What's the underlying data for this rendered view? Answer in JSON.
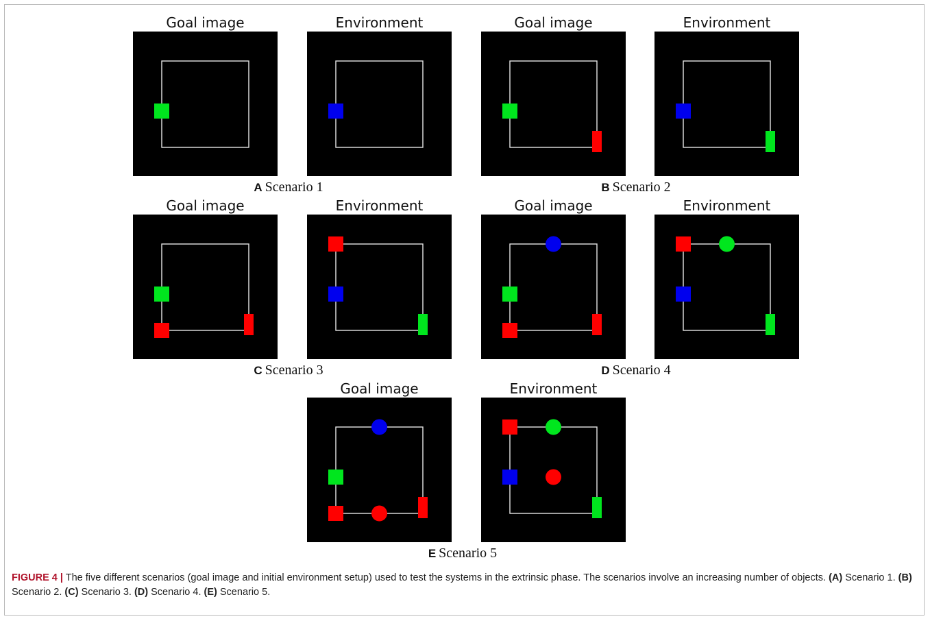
{
  "labels": {
    "goal": "Goal image",
    "env": "Environment"
  },
  "colors": {
    "red": "#ff0000",
    "green": "#00e61e",
    "blue": "#0000ee",
    "boundary": "#e6e6e6",
    "background": "#000000",
    "caption_label": "#b0122a"
  },
  "scenarios": [
    {
      "letter": "A",
      "title": "Scenario 1",
      "goal": [
        {
          "shape": "square",
          "color": "green",
          "at": "left-edge-middle"
        }
      ],
      "env": [
        {
          "shape": "square",
          "color": "blue",
          "at": "left-edge-middle"
        }
      ]
    },
    {
      "letter": "B",
      "title": "Scenario 2",
      "goal": [
        {
          "shape": "square",
          "color": "green",
          "at": "left-edge-middle"
        },
        {
          "shape": "bar",
          "color": "red",
          "at": "bottom-right-corner"
        }
      ],
      "env": [
        {
          "shape": "square",
          "color": "blue",
          "at": "left-edge-middle"
        },
        {
          "shape": "bar",
          "color": "green",
          "at": "bottom-right-corner"
        }
      ]
    },
    {
      "letter": "C",
      "title": "Scenario 3",
      "goal": [
        {
          "shape": "square",
          "color": "green",
          "at": "left-edge-middle"
        },
        {
          "shape": "square",
          "color": "red",
          "at": "bottom-left-corner"
        },
        {
          "shape": "bar",
          "color": "red",
          "at": "bottom-right-corner"
        }
      ],
      "env": [
        {
          "shape": "square",
          "color": "red",
          "at": "top-left-corner"
        },
        {
          "shape": "square",
          "color": "blue",
          "at": "left-edge-middle"
        },
        {
          "shape": "bar",
          "color": "green",
          "at": "bottom-right-corner"
        }
      ]
    },
    {
      "letter": "D",
      "title": "Scenario 4",
      "goal": [
        {
          "shape": "circle",
          "color": "blue",
          "at": "top-edge-middle"
        },
        {
          "shape": "square",
          "color": "green",
          "at": "left-edge-middle"
        },
        {
          "shape": "square",
          "color": "red",
          "at": "bottom-left-corner"
        },
        {
          "shape": "bar",
          "color": "red",
          "at": "bottom-right-corner"
        }
      ],
      "env": [
        {
          "shape": "square",
          "color": "red",
          "at": "top-left-corner"
        },
        {
          "shape": "circle",
          "color": "green",
          "at": "top-edge-middle"
        },
        {
          "shape": "square",
          "color": "blue",
          "at": "left-edge-middle"
        },
        {
          "shape": "bar",
          "color": "green",
          "at": "bottom-right-corner"
        }
      ]
    },
    {
      "letter": "E",
      "title": "Scenario 5",
      "goal": [
        {
          "shape": "circle",
          "color": "blue",
          "at": "top-edge-middle"
        },
        {
          "shape": "square",
          "color": "green",
          "at": "left-edge-middle"
        },
        {
          "shape": "square",
          "color": "red",
          "at": "bottom-left-corner"
        },
        {
          "shape": "circle",
          "color": "red",
          "at": "bottom-edge-middle"
        },
        {
          "shape": "bar",
          "color": "red",
          "at": "bottom-right-corner"
        }
      ],
      "env": [
        {
          "shape": "square",
          "color": "red",
          "at": "top-left-corner"
        },
        {
          "shape": "circle",
          "color": "green",
          "at": "top-edge-middle"
        },
        {
          "shape": "square",
          "color": "blue",
          "at": "left-edge-middle"
        },
        {
          "shape": "circle",
          "color": "red",
          "at": "center"
        },
        {
          "shape": "bar",
          "color": "green",
          "at": "bottom-right-corner"
        }
      ]
    }
  ],
  "caption": {
    "label": "FIGURE 4 |",
    "text1": " The five different scenarios (goal image and initial environment setup) used to test the systems in the extrinsic phase. The scenarios involve an increasing number of objects. ",
    "refs": [
      {
        "ref": "(A)",
        "text": " Scenario 1. "
      },
      {
        "ref": "(B)",
        "text": " Scenario 2. "
      },
      {
        "ref": "(C)",
        "text": " Scenario 3. "
      },
      {
        "ref": "(D)",
        "text": " Scenario 4. "
      },
      {
        "ref": "(E)",
        "text": " Scenario 5."
      }
    ]
  }
}
